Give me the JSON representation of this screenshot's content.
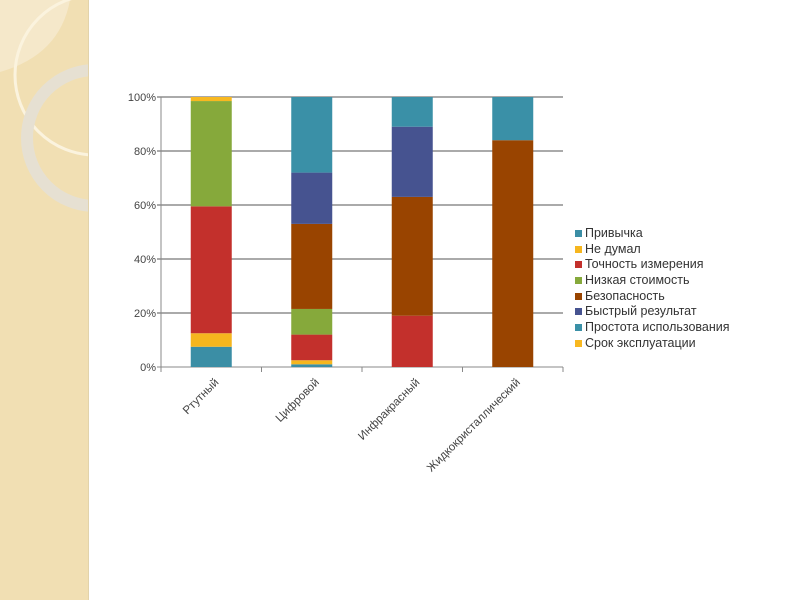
{
  "chart_data": {
    "type": "bar",
    "stacked": true,
    "percent": true,
    "title": "",
    "xlabel": "",
    "ylabel": "",
    "ylim": [
      0,
      100
    ],
    "yticks": [
      "0%",
      "20%",
      "40%",
      "60%",
      "80%",
      "100%"
    ],
    "grid": true,
    "legend_position": "right",
    "categories": [
      "Ртутный",
      "Цифровой",
      "Инфракрасный",
      "Жидкокристаллический"
    ],
    "series": [
      {
        "name": "Привычка",
        "color": "#3b8ea5",
        "values": [
          7.5,
          1,
          0,
          0
        ]
      },
      {
        "name": "Не думал",
        "color": "#f6b61e",
        "values": [
          5,
          1.5,
          0,
          0
        ]
      },
      {
        "name": "Точность измерения",
        "color": "#c3302c",
        "values": [
          47,
          9.5,
          19,
          0
        ]
      },
      {
        "name": "Низкая стоимость",
        "color": "#86a93b",
        "values": [
          39,
          9.5,
          0,
          0
        ]
      },
      {
        "name": "Безопасность",
        "color": "#994400",
        "values": [
          0,
          31.5,
          44,
          84
        ]
      },
      {
        "name": "Быстрый результат",
        "color": "#465390",
        "values": [
          0,
          19,
          26,
          0
        ]
      },
      {
        "name": "Простота использования",
        "color": "#3a90a7",
        "values": [
          0,
          28,
          11,
          16
        ]
      },
      {
        "name": "Срок эксплуатации",
        "color": "#f8b820",
        "values": [
          1.5,
          0,
          0,
          0
        ]
      }
    ]
  }
}
